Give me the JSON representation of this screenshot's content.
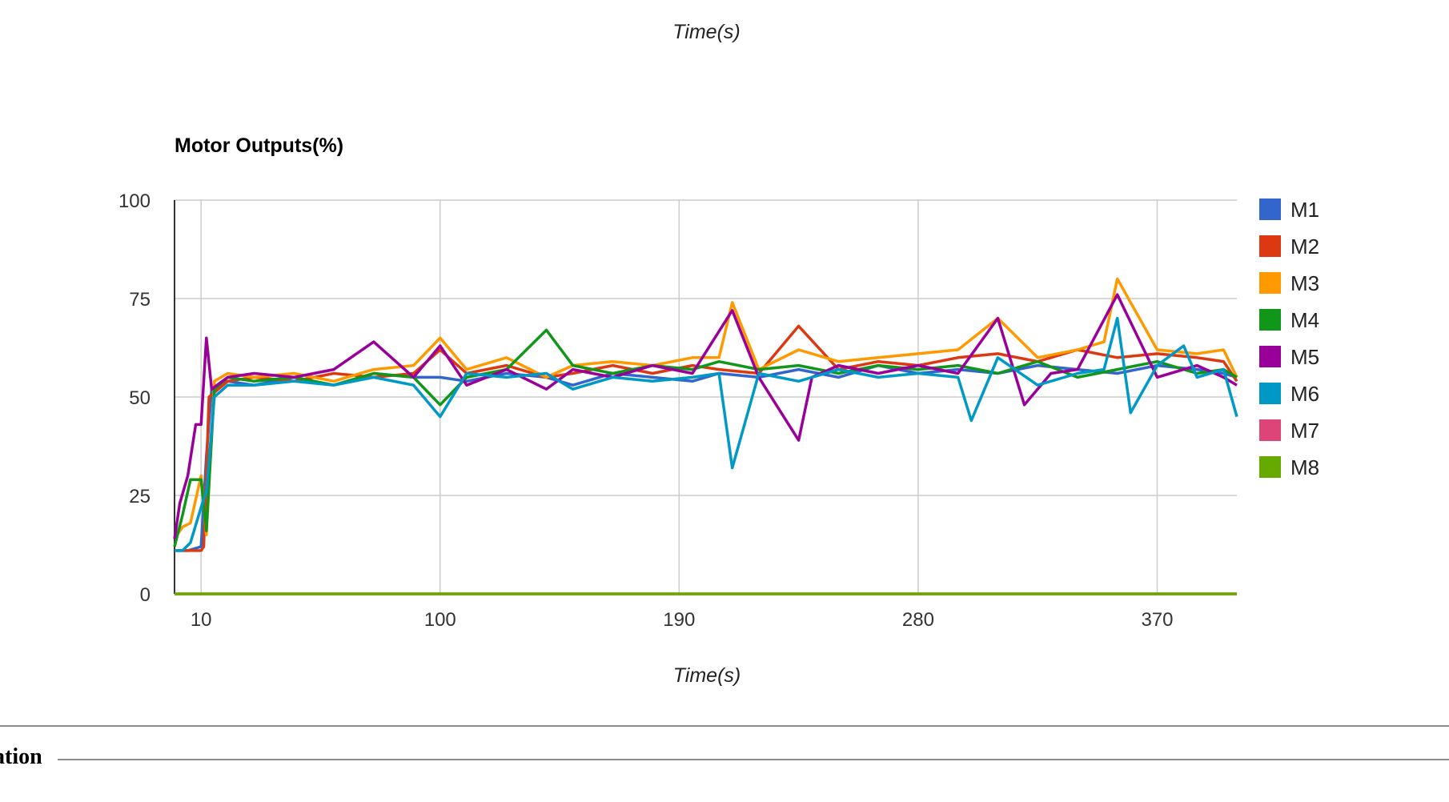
{
  "page": {
    "top_axis_label": "Time(s)",
    "section_label": "ation"
  },
  "chart_data": {
    "type": "line",
    "title": "Motor Outputs(%)",
    "xlabel": "Time(s)",
    "ylabel": "",
    "xlim": [
      0,
      400
    ],
    "ylim": [
      0,
      100
    ],
    "x_ticks": [
      "10",
      "100",
      "190",
      "280",
      "370"
    ],
    "y_ticks": [
      "0",
      "25",
      "50",
      "75",
      "100"
    ],
    "grid": true,
    "legend_position": "right",
    "series": [
      {
        "name": "M1",
        "color": "#3366cc",
        "x": [
          0,
          5,
          10,
          12,
          14,
          20,
          30,
          45,
          60,
          75,
          90,
          100,
          110,
          125,
          140,
          150,
          165,
          180,
          195,
          205,
          220,
          235,
          250,
          265,
          280,
          295,
          310,
          325,
          340,
          355,
          370,
          385,
          395,
          400
        ],
        "y": [
          11,
          11,
          12,
          35,
          52,
          54,
          53,
          55,
          53,
          56,
          55,
          55,
          54,
          56,
          55,
          53,
          56,
          55,
          54,
          56,
          55,
          57,
          55,
          58,
          56,
          57,
          56,
          58,
          57,
          56,
          58,
          57,
          56,
          55
        ]
      },
      {
        "name": "M2",
        "color": "#dc3912",
        "x": [
          0,
          5,
          10,
          11,
          13,
          20,
          30,
          45,
          60,
          75,
          90,
          100,
          110,
          125,
          140,
          150,
          165,
          180,
          195,
          205,
          220,
          235,
          250,
          265,
          280,
          295,
          310,
          325,
          340,
          355,
          370,
          385,
          395,
          400
        ],
        "y": [
          11,
          11,
          11,
          12,
          50,
          54,
          55,
          54,
          56,
          55,
          56,
          62,
          56,
          58,
          55,
          56,
          58,
          56,
          58,
          57,
          56,
          68,
          57,
          59,
          58,
          60,
          61,
          59,
          62,
          60,
          61,
          60,
          59,
          54
        ]
      },
      {
        "name": "M3",
        "color": "#ff9900",
        "x": [
          0,
          3,
          6,
          10,
          12,
          15,
          20,
          30,
          45,
          60,
          75,
          90,
          100,
          110,
          125,
          140,
          150,
          165,
          180,
          195,
          205,
          210,
          220,
          235,
          250,
          265,
          280,
          295,
          310,
          325,
          340,
          350,
          355,
          370,
          385,
          395,
          400
        ],
        "y": [
          14,
          17,
          18,
          30,
          15,
          54,
          56,
          55,
          56,
          54,
          57,
          58,
          65,
          57,
          60,
          55,
          58,
          59,
          58,
          60,
          60,
          74,
          57,
          62,
          59,
          60,
          61,
          62,
          70,
          60,
          62,
          64,
          80,
          62,
          61,
          62,
          55
        ]
      },
      {
        "name": "M4",
        "color": "#109618",
        "x": [
          0,
          3,
          6,
          10,
          12,
          15,
          20,
          30,
          45,
          60,
          75,
          90,
          100,
          110,
          125,
          140,
          150,
          165,
          180,
          195,
          205,
          220,
          235,
          250,
          265,
          280,
          295,
          310,
          325,
          340,
          355,
          370,
          385,
          395,
          400
        ],
        "y": [
          12,
          20,
          29,
          29,
          16,
          52,
          55,
          54,
          55,
          53,
          56,
          55,
          48,
          55,
          57,
          67,
          58,
          56,
          58,
          57,
          59,
          57,
          58,
          56,
          58,
          57,
          58,
          56,
          59,
          55,
          57,
          59,
          56,
          57,
          55
        ]
      },
      {
        "name": "M5",
        "color": "#990099",
        "x": [
          0,
          2,
          5,
          8,
          10,
          12,
          14,
          20,
          30,
          45,
          60,
          75,
          90,
          100,
          110,
          125,
          140,
          150,
          165,
          180,
          195,
          210,
          220,
          235,
          240,
          250,
          265,
          280,
          295,
          310,
          320,
          330,
          340,
          355,
          370,
          385,
          395,
          400
        ],
        "y": [
          14,
          23,
          30,
          43,
          43,
          65,
          52,
          55,
          56,
          55,
          57,
          64,
          55,
          63,
          53,
          57,
          52,
          57,
          55,
          58,
          56,
          72,
          55,
          39,
          55,
          58,
          56,
          58,
          56,
          70,
          48,
          56,
          57,
          76,
          55,
          58,
          55,
          53
        ]
      },
      {
        "name": "M6",
        "color": "#0099c6",
        "x": [
          0,
          3,
          6,
          10,
          12,
          15,
          20,
          30,
          45,
          60,
          75,
          90,
          100,
          110,
          125,
          140,
          150,
          165,
          180,
          195,
          205,
          210,
          220,
          235,
          250,
          265,
          280,
          295,
          300,
          310,
          325,
          340,
          350,
          355,
          360,
          370,
          380,
          385,
          395,
          400
        ],
        "y": [
          11,
          11,
          13,
          22,
          26,
          50,
          53,
          53,
          54,
          53,
          55,
          53,
          45,
          56,
          55,
          56,
          52,
          55,
          54,
          55,
          56,
          32,
          56,
          54,
          57,
          55,
          56,
          55,
          44,
          60,
          53,
          56,
          57,
          70,
          46,
          58,
          63,
          55,
          57,
          45
        ]
      },
      {
        "name": "M7",
        "color": "#dd4477",
        "x": [
          0,
          400
        ],
        "y": [
          0,
          0
        ]
      },
      {
        "name": "M8",
        "color": "#66aa00",
        "x": [
          0,
          400
        ],
        "y": [
          0,
          0
        ]
      }
    ]
  }
}
